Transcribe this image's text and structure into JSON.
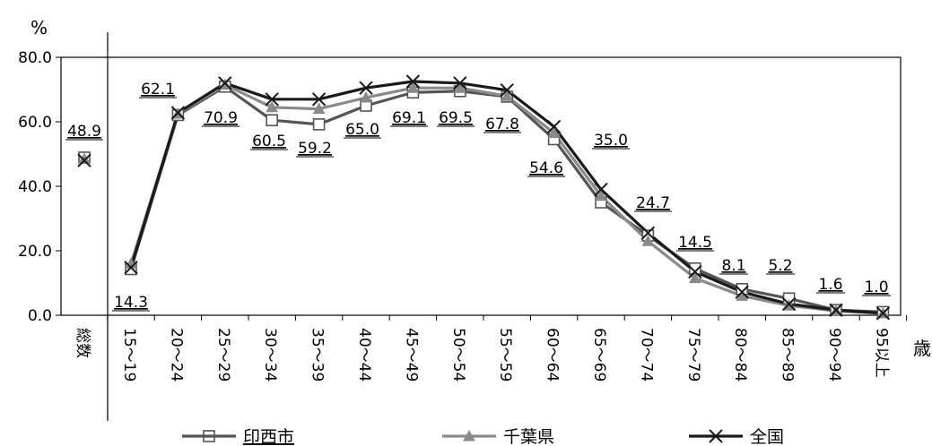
{
  "chart_data": {
    "type": "line",
    "y_unit_label": "%",
    "x_unit_label": "歳",
    "ylim": [
      0,
      80
    ],
    "yticks": [
      "0.0",
      "20.0",
      "40.0",
      "60.0",
      "80.0"
    ],
    "total_category": "総数",
    "total_value": 48.9,
    "total_value_label": "48.9",
    "categories": [
      "15～19",
      "20～24",
      "25～29",
      "30～34",
      "35～39",
      "40～44",
      "45～49",
      "50～54",
      "55～59",
      "60～64",
      "65～69",
      "70～74",
      "75～79",
      "80～84",
      "85～89",
      "90～94",
      "95以上"
    ],
    "data_labels": [
      "14.3",
      "62.1",
      "70.9",
      "60.5",
      "59.2",
      "65.0",
      "69.1",
      "69.5",
      "67.8",
      "54.6",
      "35.0",
      "24.7",
      "14.5",
      "8.1",
      "5.2",
      "1.6",
      "1.0"
    ],
    "series": [
      {
        "name": "印西市",
        "color": "#555555",
        "marker": "square",
        "total": 48.9,
        "values": [
          14.3,
          62.1,
          70.9,
          60.5,
          59.2,
          65.0,
          69.1,
          69.5,
          67.8,
          54.6,
          35.0,
          24.7,
          14.5,
          8.1,
          5.2,
          1.6,
          1.0
        ]
      },
      {
        "name": "千葉県",
        "color": "#8a8a8a",
        "marker": "triangle",
        "total": 48.5,
        "values": [
          16.0,
          62.5,
          71.5,
          64.5,
          64.0,
          67.5,
          70.5,
          70.5,
          68.0,
          56.5,
          37.0,
          23.0,
          11.5,
          6.0,
          3.0,
          1.3,
          0.6
        ]
      },
      {
        "name": "全国",
        "color": "#1a1a1a",
        "marker": "x",
        "total": 48.0,
        "values": [
          14.8,
          62.8,
          72.0,
          67.0,
          67.0,
          70.5,
          72.5,
          72.0,
          69.8,
          58.5,
          39.0,
          25.5,
          13.5,
          7.2,
          3.5,
          1.6,
          0.6
        ]
      }
    ],
    "grid": false,
    "legend_position": "bottom"
  }
}
